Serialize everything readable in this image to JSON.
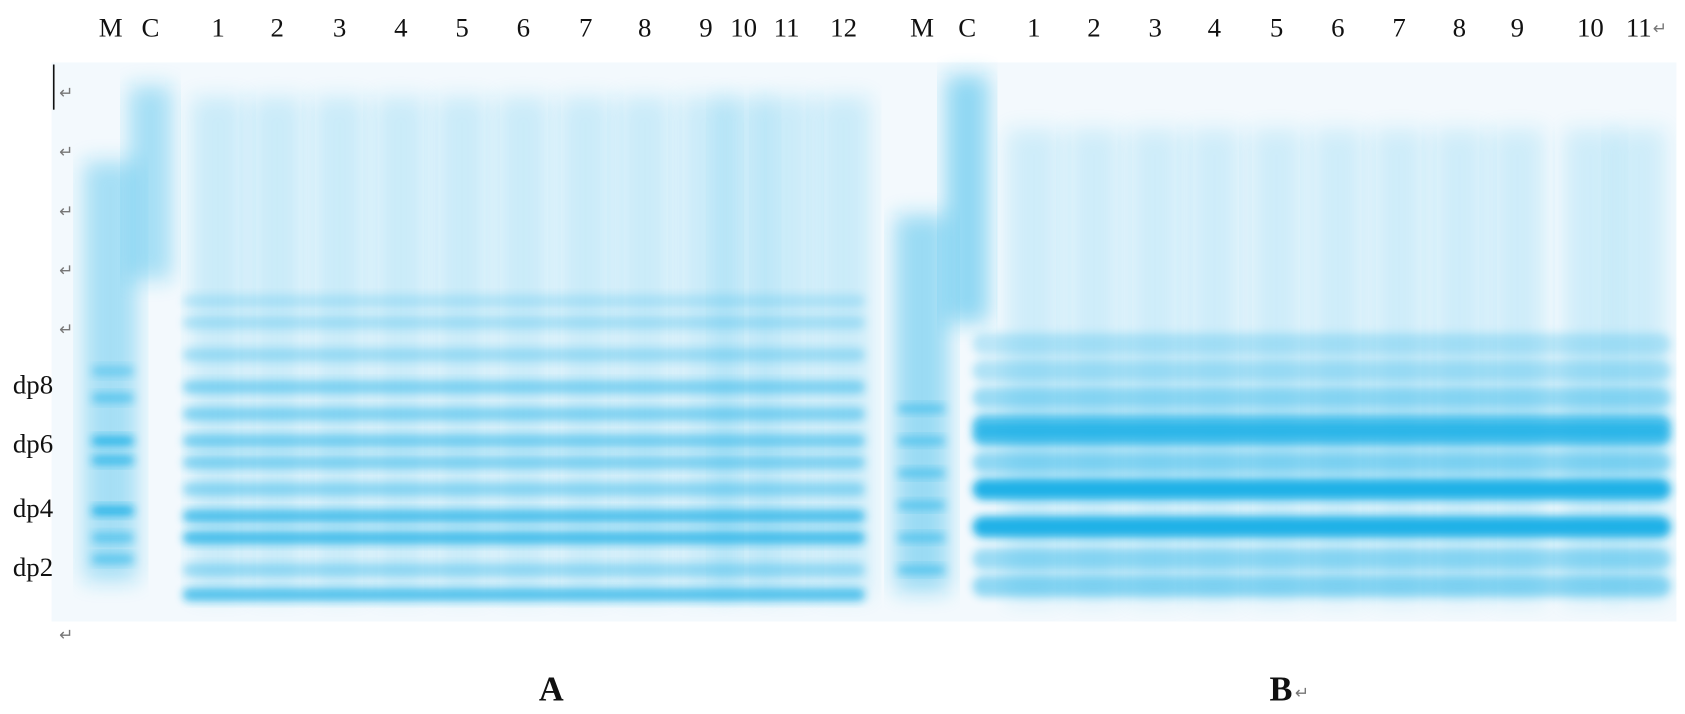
{
  "panel_a": {
    "label": "A",
    "lanes": [
      "M",
      "C",
      "1",
      "2",
      "3",
      "4",
      "5",
      "6",
      "7",
      "8",
      "9",
      "10",
      "11",
      "12"
    ]
  },
  "panel_b": {
    "label": "B",
    "lanes": [
      "M",
      "C",
      "1",
      "2",
      "3",
      "4",
      "5",
      "6",
      "7",
      "8",
      "9",
      "10",
      "11"
    ]
  },
  "markers": [
    "dp8",
    "dp6",
    "dp4",
    "dp2"
  ],
  "paragraph_marks": [
    "↵",
    "↵",
    "↵",
    "↵",
    "↵",
    "↵",
    "↵",
    "↵"
  ]
}
